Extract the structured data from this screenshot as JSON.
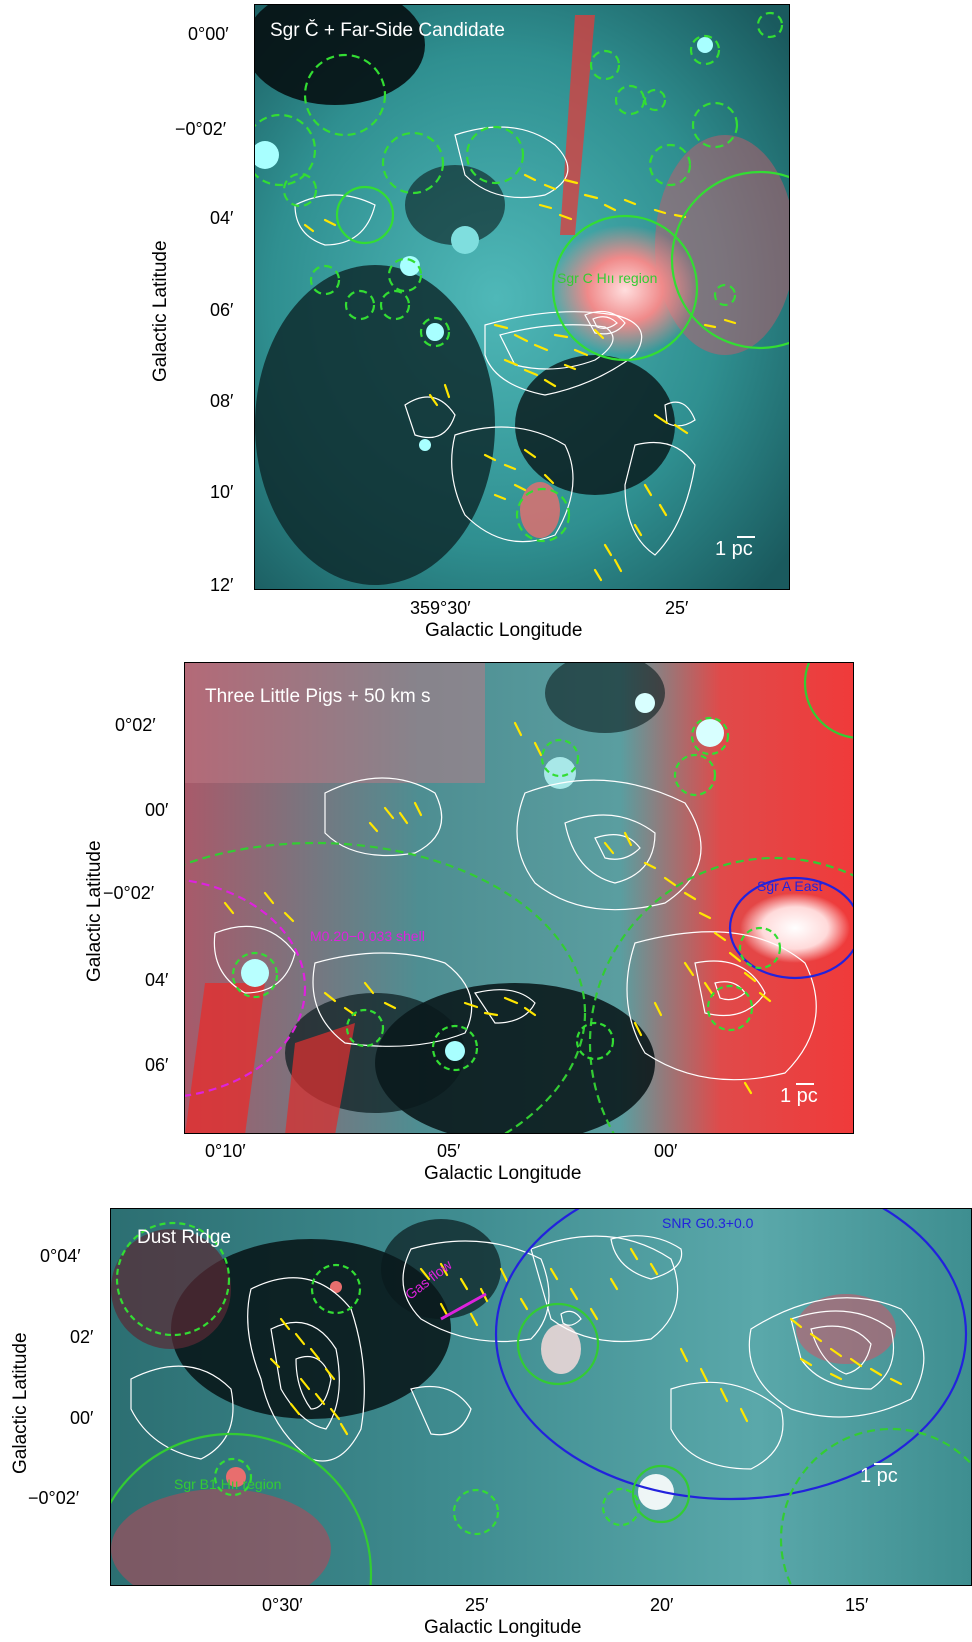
{
  "panels": [
    {
      "title": "Sgr C̆ + Far-Side Candidate",
      "xlabel": "Galactic Longitude",
      "ylabel": "Galactic Latitude",
      "yticks": [
        "0°00′",
        "−0°02′",
        "04′",
        "06′",
        "08′",
        "10′",
        "12′"
      ],
      "xticks": [
        "359°30′",
        "25′"
      ],
      "scale_bar": "1 pc",
      "annotations": [
        {
          "text": "Sgr C Hıı region",
          "color": "#33cc33"
        }
      ]
    },
    {
      "title": "Three Little Pigs + 50 km s",
      "xlabel": "Galactic Longitude",
      "ylabel": "Galactic Latitude",
      "yticks": [
        "0°02′",
        "00′",
        "−0°02′",
        "04′",
        "06′"
      ],
      "xticks": [
        "0°10′",
        "05′",
        "00′"
      ],
      "scale_bar": "1 pc",
      "annotations": [
        {
          "text": "Sgr A East",
          "color": "#2222dd"
        },
        {
          "text": "M0.20−0.033 shell",
          "color": "#dd22dd"
        }
      ]
    },
    {
      "title": "Dust Ridge",
      "xlabel": "Galactic Longitude",
      "ylabel": "Galactic Latitude",
      "yticks": [
        "0°04′",
        "02′",
        "00′",
        "−0°02′"
      ],
      "xticks": [
        "0°30′",
        "25′",
        "20′",
        "15′"
      ],
      "scale_bar": "1 pc",
      "annotations": [
        {
          "text": "SNR G0.3+0.0",
          "color": "#2222dd"
        },
        {
          "text": "Gas flow",
          "color": "#dd22dd"
        },
        {
          "text": "Sgr B1 Hıı region",
          "color": "#33cc33"
        }
      ]
    }
  ]
}
